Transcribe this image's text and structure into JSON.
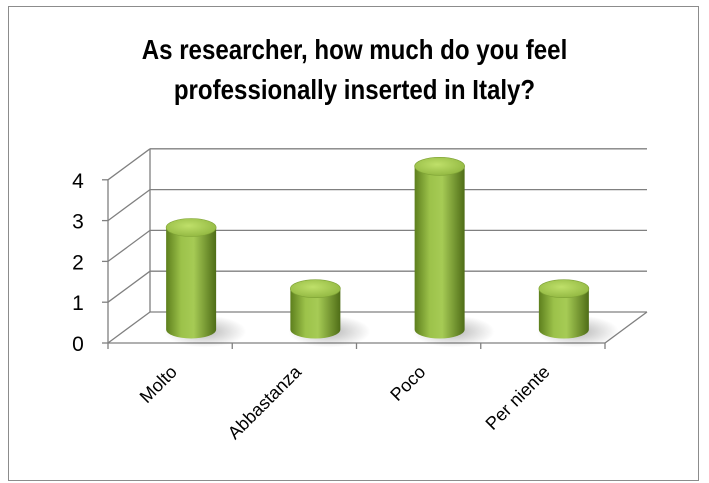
{
  "chart_data": {
    "type": "bar",
    "style": "3d-cylinder",
    "title": [
      "As researcher, how much do you feel",
      "professionally inserted in Italy?"
    ],
    "categories": [
      "Molto",
      "Abbastanza",
      "Poco",
      "Per niente"
    ],
    "values": [
      2.5,
      1,
      4,
      1
    ],
    "ylim": [
      0,
      4
    ],
    "yticks": [
      0,
      1,
      2,
      3,
      4
    ],
    "grid": true,
    "legend": "none",
    "colors": {
      "bar": "#8db33d",
      "bar_top": "#a9cf52",
      "bar_dark": "#56761a",
      "axis": "#808080"
    }
  }
}
